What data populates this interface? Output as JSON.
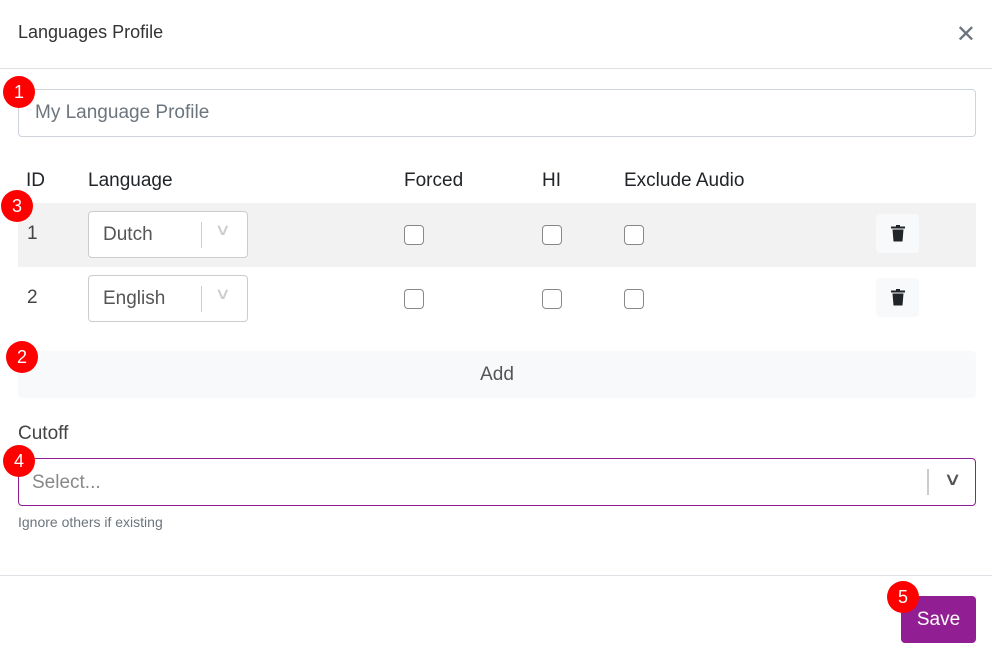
{
  "header": {
    "title": "Languages Profile",
    "close_icon": "close-icon"
  },
  "profile_name": {
    "value": "My Language Profile"
  },
  "table": {
    "headers": [
      "ID",
      "Language",
      "Forced",
      "HI",
      "Exclude Audio"
    ],
    "rows": [
      {
        "id": "1",
        "language": "Dutch",
        "forced": false,
        "hi": false,
        "exclude_audio": false
      },
      {
        "id": "2",
        "language": "English",
        "forced": false,
        "hi": false,
        "exclude_audio": false
      }
    ]
  },
  "add_label": "Add",
  "cutoff": {
    "label": "Cutoff",
    "placeholder": "Select...",
    "help": "Ignore others if existing"
  },
  "save_label": "Save",
  "annotations": [
    "1",
    "2",
    "3",
    "4",
    "5"
  ],
  "colors": {
    "accent": "#911f93",
    "annotation": "#ff0000"
  }
}
